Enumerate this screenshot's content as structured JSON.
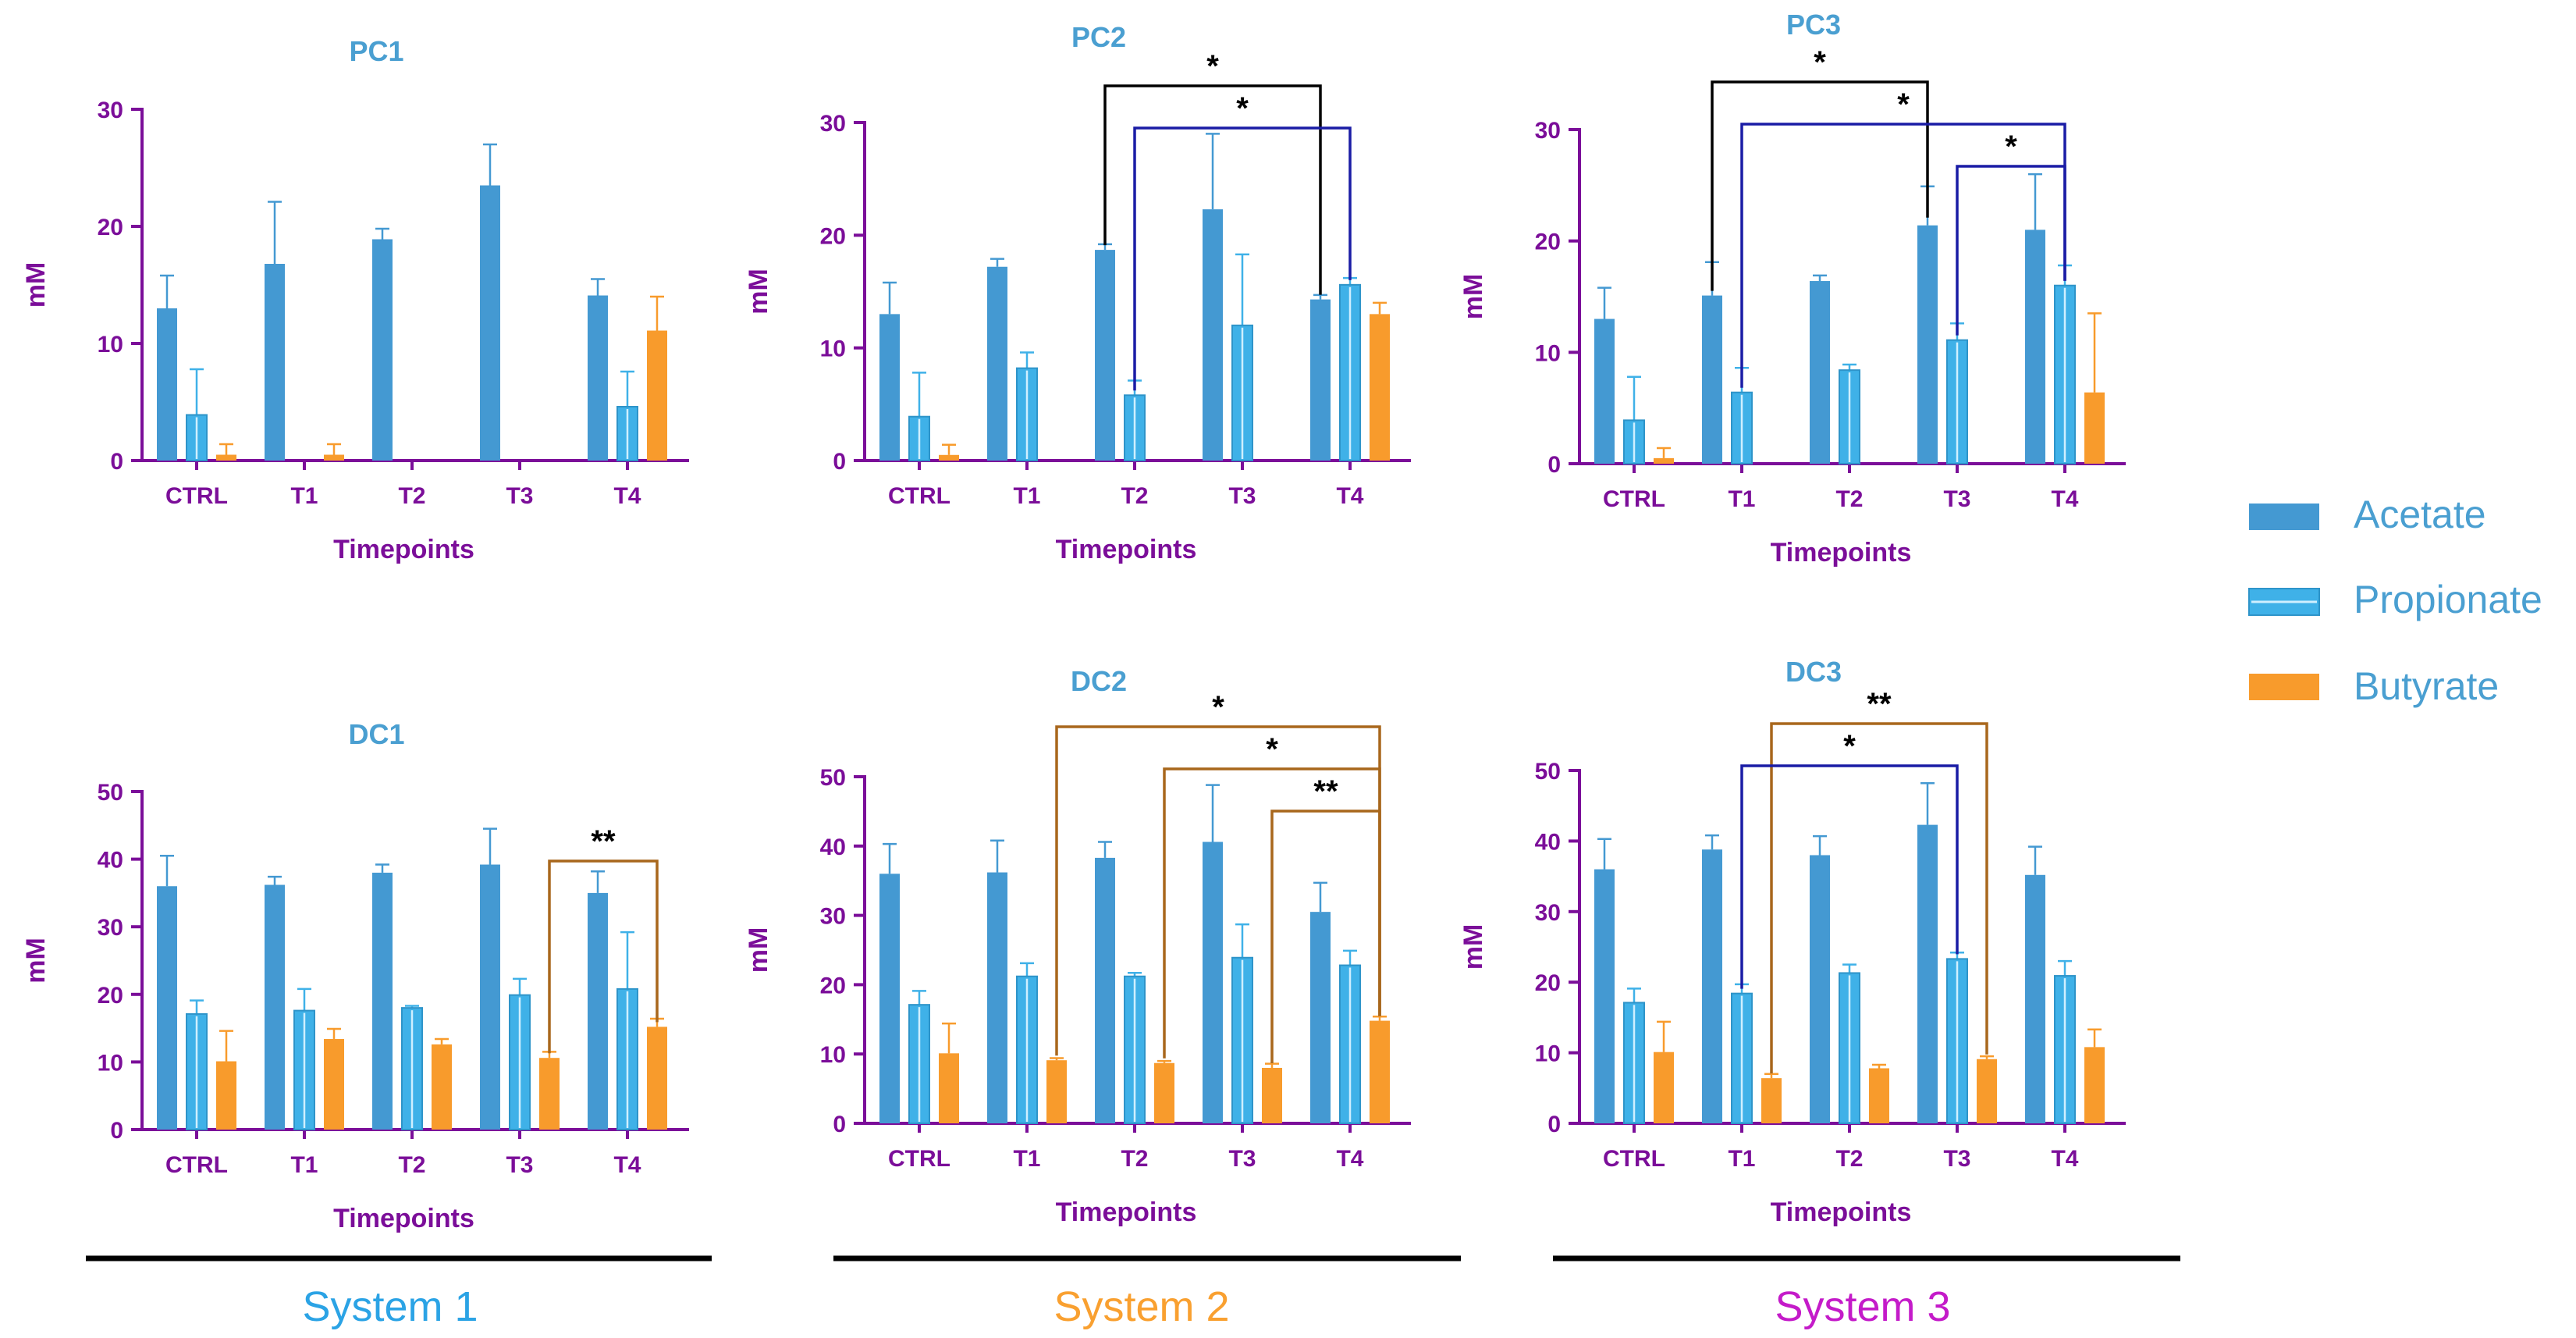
{
  "colors": {
    "acetate": "#4499D2",
    "propionate": "#3FB1E8",
    "butyrate": "#F89B2C",
    "axis": "#7B0E99",
    "title": "#4A9FD1",
    "blue_bracket": "#1A1CA5",
    "black_bracket": "#000000",
    "brown_bracket": "#A8671C",
    "system1": "#2BA3E5",
    "system2": "#F9A030",
    "system3": "#C41BC9",
    "legend_text": "#4A9FD1"
  },
  "legend": [
    "Acetate",
    "Propionate",
    "Butyrate"
  ],
  "systems": [
    "System 1",
    "System 2",
    "System 3"
  ],
  "chart_data": [
    {
      "type": "bar",
      "title": "PC1",
      "xlabel": "Timepoints",
      "ylabel": "mM",
      "categories": [
        "CTRL",
        "T1",
        "T2",
        "T3",
        "T4"
      ],
      "ylim": [
        0,
        30
      ],
      "yticks": [
        0,
        10,
        20,
        30
      ],
      "series": [
        {
          "name": "Acetate",
          "values": [
            13,
            16.8,
            18.9,
            23.5,
            14.1
          ],
          "err": [
            2.8,
            5.3,
            0.9,
            3.5,
            1.4
          ]
        },
        {
          "name": "Propionate",
          "values": [
            3.9,
            0,
            0,
            0,
            4.6
          ],
          "err": [
            3.9,
            0,
            0,
            0,
            3
          ]
        },
        {
          "name": "Butyrate",
          "values": [
            0.5,
            0.5,
            0,
            0,
            11.1
          ],
          "err": [
            0.9,
            0.9,
            0,
            0,
            2.9
          ]
        }
      ],
      "brackets": []
    },
    {
      "type": "bar",
      "title": "PC2",
      "xlabel": "Timepoints",
      "ylabel": "mM",
      "categories": [
        "CTRL",
        "T1",
        "T2",
        "T3",
        "T4"
      ],
      "ylim": [
        0,
        30
      ],
      "yticks": [
        0,
        10,
        20,
        30
      ],
      "series": [
        {
          "name": "Acetate",
          "values": [
            13,
            17.2,
            18.7,
            22.3,
            14.3
          ],
          "err": [
            2.8,
            0.7,
            0.5,
            6.7,
            0.4
          ]
        },
        {
          "name": "Propionate",
          "values": [
            3.9,
            8.2,
            5.8,
            12,
            15.6
          ],
          "err": [
            3.9,
            1.4,
            1.3,
            6.3,
            0.6
          ]
        },
        {
          "name": "Butyrate",
          "values": [
            0.5,
            0,
            0,
            0,
            13
          ],
          "err": [
            0.9,
            0,
            0,
            0,
            1
          ]
        }
      ],
      "brackets": [
        {
          "from": [
            2,
            0
          ],
          "to": [
            4,
            0
          ],
          "label": "*",
          "color": "black_bracket",
          "level": 0
        },
        {
          "from": [
            2,
            1
          ],
          "to": [
            4,
            1
          ],
          "label": "*",
          "color": "blue_bracket",
          "level": 1
        }
      ]
    },
    {
      "type": "bar",
      "title": "PC3",
      "xlabel": "Timepoints",
      "ylabel": "mM",
      "categories": [
        "CTRL",
        "T1",
        "T2",
        "T3",
        "T4"
      ],
      "ylim": [
        0,
        30
      ],
      "yticks": [
        0,
        10,
        20,
        30
      ],
      "series": [
        {
          "name": "Acetate",
          "values": [
            13,
            15.1,
            16.4,
            21.4,
            21
          ],
          "err": [
            2.8,
            3,
            0.5,
            3.5,
            5
          ]
        },
        {
          "name": "Propionate",
          "values": [
            3.9,
            6.4,
            8.4,
            11.1,
            16
          ],
          "err": [
            3.9,
            2.2,
            0.5,
            1.5,
            1.8
          ]
        },
        {
          "name": "Butyrate",
          "values": [
            0.5,
            0,
            0,
            0,
            6.4
          ],
          "err": [
            0.9,
            0,
            0,
            0,
            7.1
          ]
        }
      ],
      "brackets": [
        {
          "from": [
            1,
            0
          ],
          "to": [
            3,
            0
          ],
          "label": "*",
          "color": "black_bracket",
          "level": 0
        },
        {
          "from": [
            1,
            1
          ],
          "to": [
            4,
            1
          ],
          "label": "*",
          "color": "blue_bracket",
          "level": 1
        },
        {
          "from": [
            3,
            1
          ],
          "to": [
            4,
            1
          ],
          "label": "*",
          "color": "blue_bracket",
          "level": 2
        }
      ]
    },
    {
      "type": "bar",
      "title": "DC1",
      "xlabel": "Timepoints",
      "ylabel": "mM",
      "categories": [
        "CTRL",
        "T1",
        "T2",
        "T3",
        "T4"
      ],
      "ylim": [
        0,
        50
      ],
      "yticks": [
        0,
        10,
        20,
        30,
        40,
        50
      ],
      "series": [
        {
          "name": "Acetate",
          "values": [
            36,
            36.2,
            38,
            39.2,
            35
          ],
          "err": [
            4.5,
            1.2,
            1.2,
            5.3,
            3.2
          ]
        },
        {
          "name": "Propionate",
          "values": [
            17.1,
            17.6,
            18,
            19.9,
            20.8
          ],
          "err": [
            2,
            3.2,
            0.3,
            2.4,
            8.4
          ]
        },
        {
          "name": "Butyrate",
          "values": [
            10.1,
            13.4,
            12.6,
            10.6,
            15.2
          ],
          "err": [
            4.5,
            1.5,
            0.8,
            0.9,
            1.2
          ]
        }
      ],
      "brackets": [
        {
          "from": [
            3,
            2
          ],
          "to": [
            4,
            2
          ],
          "label": "**",
          "color": "brown_bracket",
          "level": 0
        }
      ]
    },
    {
      "type": "bar",
      "title": "DC2",
      "xlabel": "Timepoints",
      "ylabel": "mM",
      "categories": [
        "CTRL",
        "T1",
        "T2",
        "T3",
        "T4"
      ],
      "ylim": [
        0,
        50
      ],
      "yticks": [
        0,
        10,
        20,
        30,
        40,
        50
      ],
      "series": [
        {
          "name": "Acetate",
          "values": [
            36,
            36.2,
            38.3,
            40.6,
            30.5
          ],
          "err": [
            4.3,
            4.6,
            2.3,
            8.2,
            4.2
          ]
        },
        {
          "name": "Propionate",
          "values": [
            17.1,
            21.2,
            21.2,
            23.9,
            22.8
          ],
          "err": [
            2,
            1.9,
            0.5,
            4.8,
            2.1
          ]
        },
        {
          "name": "Butyrate",
          "values": [
            10.1,
            9.1,
            8.7,
            8,
            14.8
          ],
          "err": [
            4.3,
            0.3,
            0.3,
            0.6,
            0.6
          ]
        }
      ],
      "brackets": [
        {
          "from": [
            1,
            2
          ],
          "to": [
            4,
            2
          ],
          "label": "*",
          "color": "brown_bracket",
          "level": 0
        },
        {
          "from": [
            2,
            2
          ],
          "to": [
            4,
            2
          ],
          "label": "*",
          "color": "brown_bracket",
          "level": 1
        },
        {
          "from": [
            3,
            2
          ],
          "to": [
            4,
            2
          ],
          "label": "**",
          "color": "brown_bracket",
          "level": 2
        }
      ]
    },
    {
      "type": "bar",
      "title": "DC3",
      "xlabel": "Timepoints",
      "ylabel": "mM",
      "categories": [
        "CTRL",
        "T1",
        "T2",
        "T3",
        "T4"
      ],
      "ylim": [
        0,
        50
      ],
      "yticks": [
        0,
        10,
        20,
        30,
        40,
        50
      ],
      "series": [
        {
          "name": "Acetate",
          "values": [
            36,
            38.8,
            38,
            42.3,
            35.2
          ],
          "err": [
            4.3,
            2,
            2.7,
            5.9,
            4
          ]
        },
        {
          "name": "Propionate",
          "values": [
            17.1,
            18.4,
            21.3,
            23.3,
            20.9
          ],
          "err": [
            2,
            1.3,
            1.2,
            0.9,
            2.1
          ]
        },
        {
          "name": "Butyrate",
          "values": [
            10.1,
            6.4,
            7.8,
            9.1,
            10.8
          ],
          "err": [
            4.3,
            0.6,
            0.5,
            0.4,
            2.5
          ]
        }
      ],
      "brackets": [
        {
          "from": [
            1,
            2
          ],
          "to": [
            3,
            2
          ],
          "label": "**",
          "color": "brown_bracket",
          "level": 0
        },
        {
          "from": [
            1,
            1
          ],
          "to": [
            3,
            1
          ],
          "label": "*",
          "color": "blue_bracket",
          "level": 1
        }
      ]
    }
  ]
}
